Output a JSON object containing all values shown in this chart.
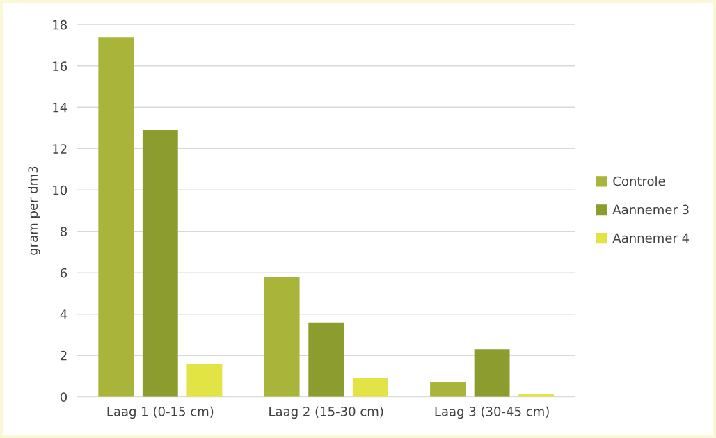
{
  "chart_data": {
    "type": "bar",
    "ylabel": "gram per dm3",
    "categories": [
      "Laag 1 (0-15 cm)",
      "Laag 2 (15-30 cm)",
      "Laag 3 (30-45 cm)"
    ],
    "series": [
      {
        "name": "Controle",
        "color": "#a9b43a",
        "values": [
          17.4,
          5.8,
          0.7
        ]
      },
      {
        "name": "Aannemer 3",
        "color": "#8c9c2e",
        "values": [
          12.9,
          3.6,
          2.3
        ]
      },
      {
        "name": "Aannemer 4",
        "color": "#e2e345",
        "values": [
          1.6,
          0.9,
          0.15
        ]
      }
    ],
    "ylim": [
      0,
      18
    ],
    "yticks": [
      0,
      2,
      4,
      6,
      8,
      10,
      12,
      14,
      16,
      18
    ],
    "grid": "y",
    "legend": "right"
  }
}
